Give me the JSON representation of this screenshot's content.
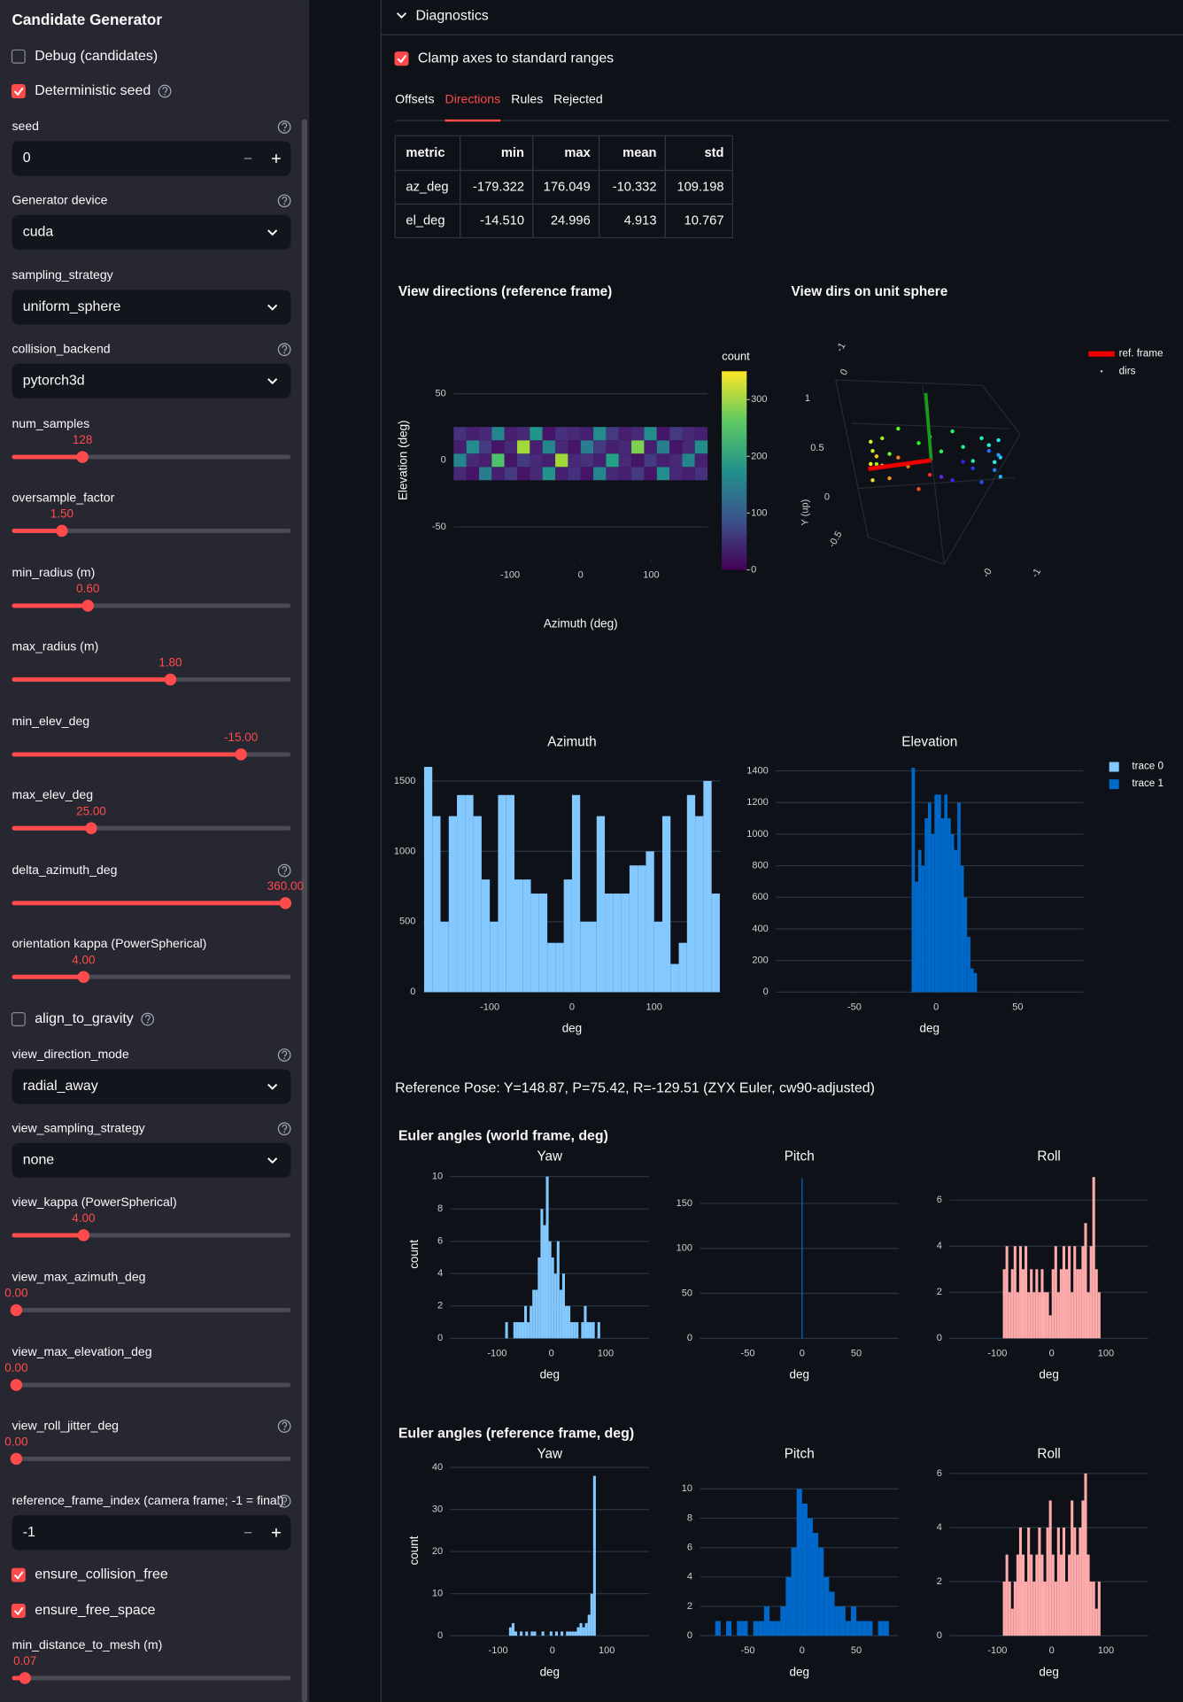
{
  "sidebar": {
    "title": "Candidate Generator",
    "controls": [
      {
        "label": "Debug (candidates)",
        "checked": false
      },
      {
        "label": "Deterministic seed",
        "checked": true
      },
      {
        "label": "seed",
        "value": "0"
      },
      {
        "label": "Generator device",
        "value": "cuda"
      },
      {
        "label": "sampling_strategy",
        "value": "uniform_sphere"
      },
      {
        "label": "collision_backend",
        "value": "pytorch3d"
      },
      {
        "label": "num_samples",
        "value": "128"
      },
      {
        "label": "oversample_factor",
        "value": "1.50"
      },
      {
        "label": "min_radius (m)",
        "value": "0.60"
      },
      {
        "label": "max_radius (m)",
        "value": "1.80"
      },
      {
        "label": "min_elev_deg",
        "value": "-15.00"
      },
      {
        "label": "max_elev_deg",
        "value": "25.00"
      },
      {
        "label": "delta_azimuth_deg",
        "value": "360.00"
      },
      {
        "label": "orientation kappa (PowerSpherical)",
        "value": "4.00"
      },
      {
        "label": "align_to_gravity",
        "checked": false
      },
      {
        "label": "view_direction_mode",
        "value": "radial_away"
      },
      {
        "label": "view_sampling_strategy",
        "value": "none"
      },
      {
        "label": "view_kappa (PowerSpherical)",
        "value": "4.00"
      },
      {
        "label": "view_max_azimuth_deg",
        "value": "0.00"
      },
      {
        "label": "view_max_elevation_deg",
        "value": "0.00"
      },
      {
        "label": "view_roll_jitter_deg",
        "value": "0.00"
      },
      {
        "label": "reference_frame_index (camera frame; -1 = final)",
        "value": "-1"
      },
      {
        "label": "ensure_collision_free",
        "checked": true
      },
      {
        "label": "ensure_free_space",
        "checked": true
      },
      {
        "label": "min_distance_to_mesh (m)",
        "value": "0.07"
      }
    ]
  },
  "diagnostics": {
    "title": "Diagnostics",
    "clamp": {
      "label": "Clamp axes to standard ranges",
      "checked": true
    },
    "tabs": [
      "Offsets",
      "Directions",
      "Rules",
      "Rejected"
    ],
    "active_tab": 1,
    "table": {
      "header": [
        "metric",
        "min",
        "max",
        "mean",
        "std"
      ],
      "rows": [
        [
          "az_deg",
          "-179.322",
          "176.049",
          "-10.332",
          "109.198"
        ],
        [
          "el_deg",
          "-14.510",
          "24.996",
          "4.913",
          "10.767"
        ]
      ]
    },
    "reference_pose": "Reference Pose: Y=148.87, P=75.42, R=-129.51 (ZYX Euler, cw90-adjusted)",
    "sections": [
      "Euler angles (world frame, deg)",
      "Euler angles (reference frame, deg)"
    ]
  },
  "chart_data": [
    {
      "type": "heatmap",
      "title": "View directions (reference frame)",
      "xlabel": "Azimuth (deg)",
      "ylabel": "Elevation (deg)",
      "xlim": [
        -180,
        180
      ],
      "ylim": [
        -75,
        75
      ],
      "xticks": [
        -100,
        0,
        100
      ],
      "yticks": [
        -50,
        0,
        50
      ],
      "x": [
        -171,
        -153,
        -135,
        -117,
        -99,
        -81,
        -63,
        -45,
        -27,
        -9,
        9,
        27,
        45,
        63,
        81,
        99,
        117,
        135,
        153,
        171
      ],
      "y": [
        -10,
        0,
        10,
        20
      ],
      "z": [
        [
          40,
          20,
          150,
          30,
          60,
          20,
          40,
          180,
          30,
          50,
          20,
          160,
          40,
          30,
          60,
          20,
          170,
          40,
          30,
          50
        ],
        [
          160,
          40,
          30,
          250,
          20,
          60,
          40,
          30,
          300,
          40,
          50,
          30,
          200,
          40,
          20,
          60,
          30,
          40,
          160,
          30
        ],
        [
          30,
          170,
          60,
          20,
          40,
          300,
          30,
          160,
          40,
          20,
          150,
          60,
          30,
          40,
          280,
          30,
          150,
          20,
          40,
          170
        ],
        [
          50,
          30,
          40,
          160,
          30,
          40,
          180,
          20,
          50,
          40,
          30,
          170,
          60,
          30,
          40,
          170,
          20,
          60,
          40,
          30
        ]
      ],
      "colorbar": {
        "title": "count",
        "lim": [
          0,
          350
        ],
        "ticks": [
          0,
          100,
          200,
          300
        ]
      }
    },
    {
      "type": "scatter3d",
      "title": "View dirs on unit sphere",
      "legend": [
        "ref. frame",
        "dirs"
      ],
      "axis_tick_labels": [
        "-1",
        "0",
        "1",
        "0.5",
        "0",
        "-0.5",
        "Y (up)",
        "-0",
        "-1"
      ],
      "azimuth": [
        -175,
        -165,
        -155,
        -145,
        -135,
        -125,
        -115,
        -105,
        -95,
        -85,
        -75,
        -65,
        -55,
        -45,
        -35,
        -25,
        -15,
        -5,
        5,
        15,
        25,
        35,
        45,
        55,
        65,
        75,
        85,
        95,
        105,
        115,
        125,
        135,
        145,
        155,
        165,
        175
      ],
      "elevation": [
        5,
        -10,
        12,
        20,
        -3,
        8,
        15,
        -12,
        2,
        22,
        10,
        -6,
        18,
        0,
        24,
        -14,
        7,
        13,
        -2,
        19,
        4,
        -9,
        16,
        11,
        -4,
        21,
        6,
        -11,
        14,
        1,
        23,
        -7,
        9,
        17,
        -1,
        3
      ]
    },
    {
      "type": "histogram",
      "title": "Azimuth",
      "xlabel": "deg",
      "xlim": [
        -181,
        181
      ],
      "ylim": [
        0,
        1650
      ],
      "xticks": [
        -100,
        0,
        100
      ],
      "yticks": [
        0,
        500,
        1000,
        1500
      ],
      "color": "#83c9ff",
      "bins": [
        -180,
        -170,
        -160,
        -150,
        -140,
        -130,
        -120,
        -110,
        -100,
        -90,
        -80,
        -70,
        -60,
        -50,
        -40,
        -30,
        -20,
        -10,
        0,
        10,
        20,
        30,
        40,
        50,
        60,
        70,
        80,
        90,
        100,
        110,
        120,
        130,
        140,
        150,
        160,
        170,
        180
      ],
      "values": [
        1600,
        1250,
        500,
        1250,
        1400,
        1400,
        1250,
        800,
        500,
        1400,
        1400,
        800,
        800,
        700,
        700,
        350,
        350,
        800,
        1400,
        500,
        500,
        1250,
        700,
        700,
        700,
        900,
        900,
        1000,
        500,
        1250,
        200,
        350,
        1400,
        1250,
        1500,
        700
      ]
    },
    {
      "type": "histogram",
      "title": "Elevation",
      "xlabel": "deg",
      "xlim": [
        -98,
        90
      ],
      "ylim": [
        0,
        1470
      ],
      "xticks": [
        -50,
        0,
        50
      ],
      "yticks": [
        0,
        200,
        400,
        600,
        800,
        1000,
        1200,
        1400
      ],
      "legend": "right",
      "bins": [
        -15,
        -13,
        -11,
        -9,
        -7,
        -5,
        -3,
        -1,
        1,
        3,
        5,
        7,
        9,
        11,
        13,
        15,
        17,
        19,
        21,
        23,
        25
      ],
      "series": [
        {
          "name": "trace 0",
          "color": "#83c9ff",
          "values": [
            150,
            0,
            0,
            0,
            0,
            0,
            0,
            0,
            0,
            0,
            0,
            0,
            0,
            0,
            0,
            0,
            0,
            0,
            0,
            0
          ]
        },
        {
          "name": "trace 1",
          "color": "#0068c9",
          "values": [
            1420,
            700,
            900,
            800,
            1100,
            1200,
            1000,
            1250,
            1250,
            1100,
            1250,
            1100,
            1000,
            900,
            1200,
            800,
            600,
            350,
            150,
            120
          ]
        }
      ]
    },
    {
      "type": "histogram",
      "title": "Yaw",
      "xlabel": "deg",
      "ylabel": "count",
      "xlim": [
        -186,
        180
      ],
      "ylim": [
        0,
        10.4
      ],
      "xticks": [
        -100,
        0,
        100
      ],
      "yticks": [
        0,
        2,
        4,
        6,
        8,
        10
      ],
      "color": "#83c9ff",
      "bins": [
        -90,
        -85,
        -80,
        -75,
        -70,
        -65,
        -60,
        -55,
        -50,
        -45,
        -40,
        -35,
        -30,
        -25,
        -20,
        -15,
        -10,
        -5,
        0,
        5,
        10,
        15,
        20,
        25,
        30,
        35,
        40,
        45,
        50,
        55,
        60,
        65,
        70,
        75,
        80,
        85,
        90
      ],
      "values": [
        0,
        1,
        0,
        0,
        1,
        1,
        1,
        1,
        2,
        1,
        2,
        3,
        3,
        5,
        8,
        7,
        10,
        6,
        5,
        4,
        6,
        3,
        4,
        2,
        2,
        1,
        1,
        1,
        0,
        1,
        2,
        1,
        1,
        1,
        0,
        1
      ]
    },
    {
      "type": "histogram",
      "title": "Pitch",
      "xlabel": "deg",
      "xlim": [
        -94,
        89
      ],
      "ylim": [
        0,
        187
      ],
      "xticks": [
        -50,
        0,
        50
      ],
      "yticks": [
        0,
        50,
        100,
        150
      ],
      "color": "#0068c9",
      "bins": [
        -0.5,
        0.5
      ],
      "values": [
        178
      ]
    },
    {
      "type": "histogram",
      "title": "Roll",
      "xlabel": "deg",
      "xlim": [
        -188,
        178
      ],
      "ylim": [
        0,
        7.3
      ],
      "xticks": [
        -100,
        0,
        100
      ],
      "yticks": [
        0,
        2,
        4,
        6
      ],
      "color": "#ffabab",
      "bins": [
        -90,
        -85,
        -80,
        -75,
        -70,
        -65,
        -60,
        -55,
        -50,
        -45,
        -40,
        -35,
        -30,
        -25,
        -20,
        -15,
        -10,
        -5,
        0,
        5,
        10,
        15,
        20,
        25,
        30,
        35,
        40,
        45,
        50,
        55,
        60,
        65,
        70,
        75,
        80,
        85,
        90
      ],
      "values": [
        3,
        4,
        2,
        3,
        4,
        2,
        4,
        3,
        4,
        2,
        3,
        2,
        3,
        2,
        3,
        2,
        2,
        1,
        3,
        4,
        2,
        3,
        4,
        3,
        4,
        2,
        4,
        3,
        3,
        4,
        5,
        2,
        4,
        7,
        3,
        2
      ]
    },
    {
      "type": "histogram",
      "title": "Yaw",
      "xlabel": "deg",
      "ylabel": "count",
      "xlim": [
        -188,
        178
      ],
      "ylim": [
        0,
        40.5
      ],
      "xticks": [
        -100,
        0,
        100
      ],
      "yticks": [
        0,
        10,
        20,
        30,
        40
      ],
      "color": "#83c9ff",
      "bins": [
        -90,
        -85,
        -80,
        -75,
        -70,
        -65,
        -60,
        -55,
        -50,
        -45,
        -40,
        -35,
        -30,
        -25,
        -20,
        -15,
        -10,
        -5,
        0,
        5,
        10,
        15,
        20,
        25,
        30,
        35,
        40,
        45,
        50,
        55,
        60,
        65,
        70,
        75,
        80,
        85,
        90
      ],
      "values": [
        0,
        0,
        2,
        3,
        1,
        0,
        1,
        0,
        1,
        0,
        1,
        1,
        0,
        0,
        1,
        0,
        0,
        1,
        0,
        1,
        0,
        1,
        0,
        1,
        1,
        1,
        1,
        2,
        3,
        2,
        3,
        5,
        10,
        38,
        0,
        0
      ]
    },
    {
      "type": "histogram",
      "title": "Pitch",
      "xlabel": "deg",
      "xlim": [
        -94,
        89
      ],
      "ylim": [
        0,
        11.6
      ],
      "xticks": [
        -50,
        0,
        50
      ],
      "yticks": [
        0,
        2,
        4,
        6,
        8,
        10
      ],
      "color": "#0068c9",
      "bins": [
        -80,
        -75,
        -70,
        -65,
        -60,
        -55,
        -50,
        -45,
        -40,
        -35,
        -30,
        -25,
        -20,
        -15,
        -10,
        -5,
        0,
        5,
        10,
        15,
        20,
        25,
        30,
        35,
        40,
        45,
        50,
        55,
        60,
        65,
        70,
        75,
        80
      ],
      "values": [
        1,
        0,
        1,
        0,
        1,
        1,
        0,
        1,
        1,
        2,
        1,
        1,
        2,
        4,
        6,
        10,
        9,
        8,
        7,
        6,
        4,
        3,
        2,
        2,
        1,
        2,
        1,
        1,
        1,
        0,
        1,
        1
      ]
    },
    {
      "type": "histogram",
      "title": "Roll",
      "xlabel": "deg",
      "xlim": [
        -188,
        178
      ],
      "ylim": [
        0,
        6.3
      ],
      "xticks": [
        -100,
        0,
        100
      ],
      "yticks": [
        0,
        2,
        4,
        6
      ],
      "color": "#ffabab",
      "bins": [
        -90,
        -85,
        -80,
        -75,
        -70,
        -65,
        -60,
        -55,
        -50,
        -45,
        -40,
        -35,
        -30,
        -25,
        -20,
        -15,
        -10,
        -5,
        0,
        5,
        10,
        15,
        20,
        25,
        30,
        35,
        40,
        45,
        50,
        55,
        60,
        65,
        70,
        75,
        80,
        85,
        90
      ],
      "values": [
        2,
        3,
        2,
        1,
        2,
        3,
        4,
        3,
        2,
        4,
        3,
        2,
        3,
        4,
        3,
        2,
        4,
        5,
        3,
        2,
        4,
        3,
        4,
        2,
        3,
        5,
        4,
        3,
        4,
        5,
        6,
        3,
        2,
        2,
        1,
        2
      ]
    }
  ]
}
